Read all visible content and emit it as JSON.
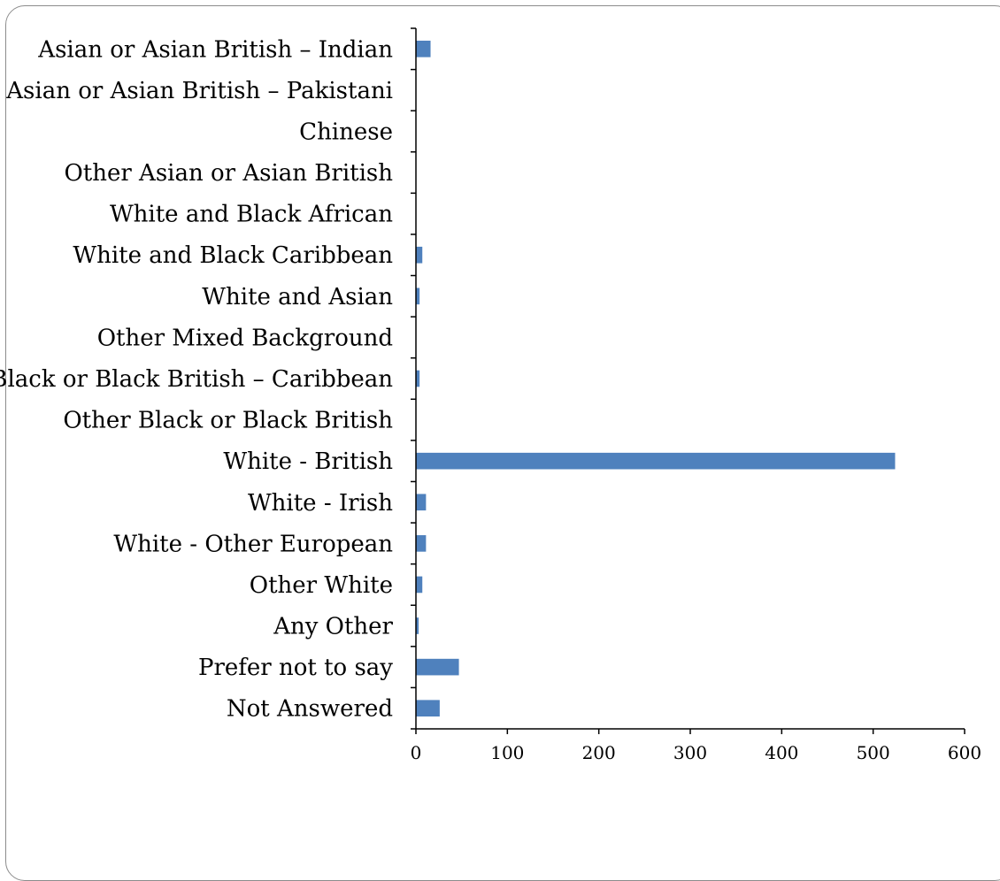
{
  "chart_data": {
    "type": "bar",
    "orientation": "horizontal",
    "title": "",
    "xlabel": "",
    "ylabel": "",
    "categories": [
      "Asian or Asian British – Indian",
      "Asian or Asian British – Pakistani",
      "Chinese",
      "Other Asian or Asian British",
      "White and Black African",
      "White and Black Caribbean",
      "White and Asian",
      "Other Mixed Background",
      "Black or Black British – Caribbean",
      "Other Black or Black British",
      "White - British",
      "White - Irish",
      "White - Other European",
      "Other White",
      "Any Other",
      "Prefer not to say",
      "Not Answered"
    ],
    "values": [
      16,
      0,
      0,
      0,
      0,
      7,
      4,
      0,
      4,
      0,
      524,
      11,
      11,
      7,
      3,
      47,
      26
    ],
    "xlim": [
      0,
      600
    ],
    "xticks": [
      "0",
      "100",
      "200",
      "300",
      "400",
      "500",
      "600"
    ],
    "bar_color": "#4f81bd",
    "grid": false,
    "legend": "none"
  }
}
